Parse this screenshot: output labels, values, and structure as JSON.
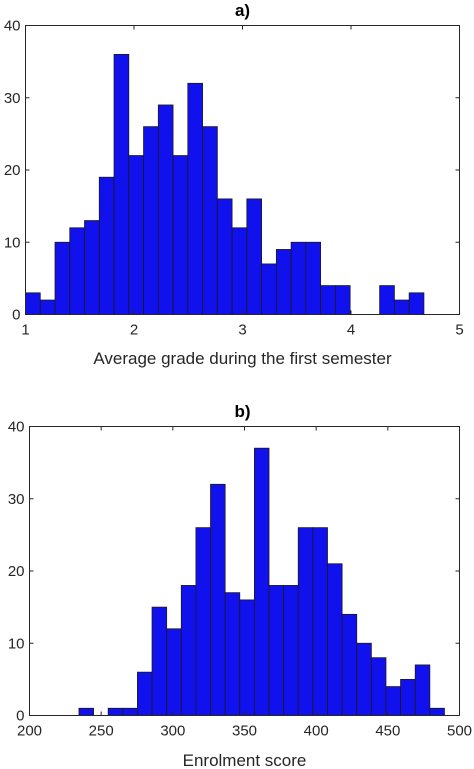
{
  "chart_data": [
    {
      "type": "bar",
      "title": "a)",
      "xlabel": "Average grade during the first semester",
      "ylabel": "",
      "xlim": [
        1,
        5
      ],
      "ylim": [
        0,
        40
      ],
      "xticks": [
        1,
        2,
        3,
        4,
        5
      ],
      "yticks": [
        0,
        10,
        20,
        30,
        40
      ],
      "bin_width": 0.136,
      "x": [
        1.0,
        1.136,
        1.272,
        1.408,
        1.544,
        1.68,
        1.816,
        1.952,
        2.088,
        2.224,
        2.36,
        2.496,
        2.632,
        2.768,
        2.904,
        3.04,
        3.176,
        3.312,
        3.448,
        3.584,
        3.72,
        3.856,
        3.992,
        4.128,
        4.264,
        4.4,
        4.536,
        4.672
      ],
      "values": [
        3,
        2,
        10,
        12,
        13,
        19,
        36,
        22,
        26,
        29,
        22,
        32,
        26,
        16,
        12,
        16,
        7,
        9,
        10,
        10,
        4,
        4,
        0,
        0,
        4,
        2,
        3,
        0
      ],
      "bar_color": "#1111ee",
      "edge_color": "#1a1a1a",
      "grid": false
    },
    {
      "type": "bar",
      "title": "b)",
      "xlabel": "Enrolment score",
      "ylabel": "",
      "xlim": [
        200,
        500
      ],
      "ylim": [
        0,
        40
      ],
      "xticks": [
        200,
        250,
        300,
        350,
        400,
        450,
        500
      ],
      "yticks": [
        0,
        10,
        20,
        30,
        40
      ],
      "bin_width": 10.2,
      "x": [
        234.5,
        244.7,
        254.9,
        265.1,
        275.3,
        285.5,
        295.7,
        305.9,
        316.1,
        326.3,
        336.5,
        346.7,
        356.9,
        367.1,
        377.3,
        387.5,
        397.7,
        407.9,
        418.1,
        428.3,
        438.5,
        448.7,
        458.9,
        469.1,
        479.3
      ],
      "values": [
        1,
        0,
        1,
        1,
        6,
        15,
        12,
        18,
        26,
        32,
        17,
        16,
        37,
        18,
        18,
        26,
        26,
        21,
        14,
        10,
        8,
        4,
        5,
        7,
        1
      ],
      "bar_color": "#1111ee",
      "edge_color": "#1a1a1a",
      "grid": false
    }
  ]
}
